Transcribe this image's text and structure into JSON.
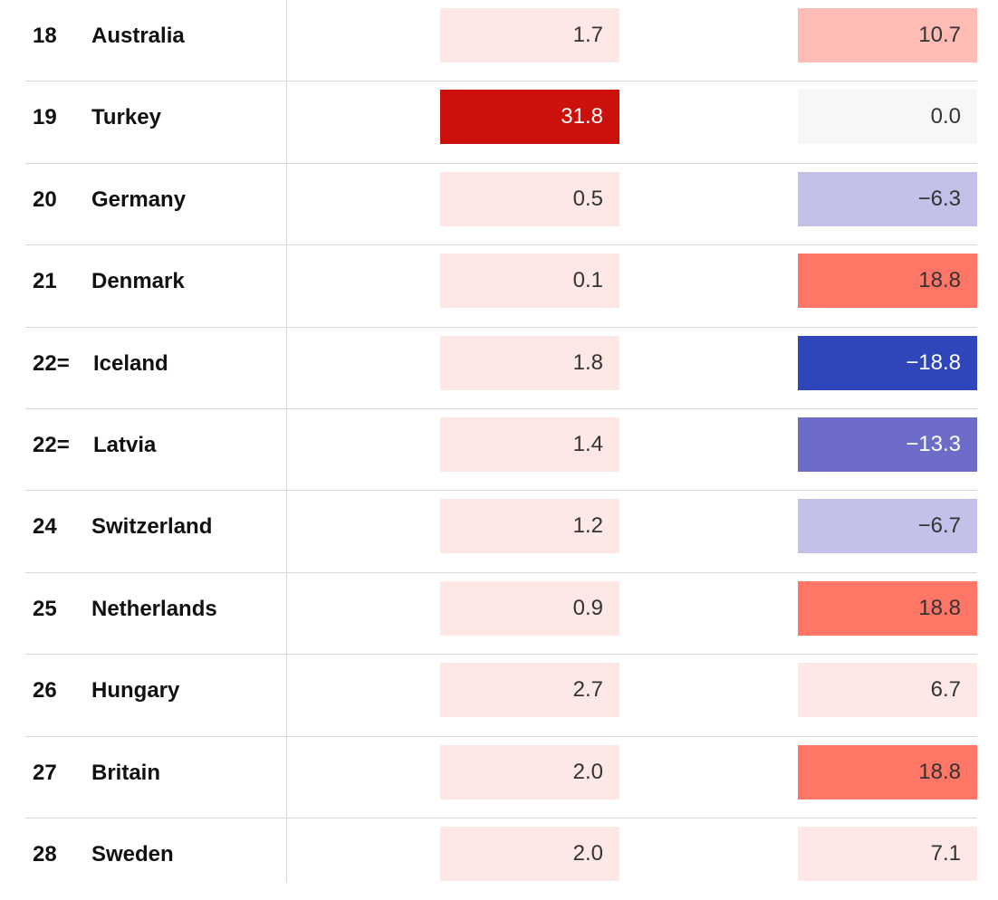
{
  "rows": [
    {
      "rank": "18",
      "country": "Australia",
      "v1": "1.7",
      "v1_bg": "#fde8e6",
      "v1_fg": "#333333",
      "v2": "10.7",
      "v2_bg": "#ffbcb5",
      "v2_fg": "#333333"
    },
    {
      "rank": "19",
      "country": "Turkey",
      "v1": "31.8",
      "v1_bg": "#cc110c",
      "v1_fg": "#ffffff",
      "v2": "0.0",
      "v2_bg": "#f7f7f7",
      "v2_fg": "#333333"
    },
    {
      "rank": "20",
      "country": "Germany",
      "v1": "0.5",
      "v1_bg": "#fde8e6",
      "v1_fg": "#333333",
      "v2": "−6.3",
      "v2_bg": "#c3c1ea",
      "v2_fg": "#333333"
    },
    {
      "rank": "21",
      "country": "Denmark",
      "v1": "0.1",
      "v1_bg": "#fde8e6",
      "v1_fg": "#333333",
      "v2": "18.8",
      "v2_bg": "#ff7566",
      "v2_fg": "#333333"
    },
    {
      "rank": "22=",
      "country": "Iceland",
      "v1": "1.8",
      "v1_bg": "#fde8e6",
      "v1_fg": "#333333",
      "v2": "−18.8",
      "v2_bg": "#2e46b9",
      "v2_fg": "#ffffff"
    },
    {
      "rank": "22=",
      "country": "Latvia",
      "v1": "1.4",
      "v1_bg": "#fde8e6",
      "v1_fg": "#333333",
      "v2": "−13.3",
      "v2_bg": "#6d6dc9",
      "v2_fg": "#ffffff"
    },
    {
      "rank": "24",
      "country": "Switzerland",
      "v1": "1.2",
      "v1_bg": "#fde8e6",
      "v1_fg": "#333333",
      "v2": "−6.7",
      "v2_bg": "#c3c1ea",
      "v2_fg": "#333333"
    },
    {
      "rank": "25",
      "country": "Netherlands",
      "v1": "0.9",
      "v1_bg": "#fde8e6",
      "v1_fg": "#333333",
      "v2": "18.8",
      "v2_bg": "#ff7566",
      "v2_fg": "#333333"
    },
    {
      "rank": "26",
      "country": "Hungary",
      "v1": "2.7",
      "v1_bg": "#fde8e6",
      "v1_fg": "#333333",
      "v2": "6.7",
      "v2_bg": "#fde8e6",
      "v2_fg": "#333333"
    },
    {
      "rank": "27",
      "country": "Britain",
      "v1": "2.0",
      "v1_bg": "#fde8e6",
      "v1_fg": "#333333",
      "v2": "18.8",
      "v2_bg": "#ff7566",
      "v2_fg": "#333333"
    },
    {
      "rank": "28",
      "country": "Sweden",
      "v1": "2.0",
      "v1_bg": "#fde8e6",
      "v1_fg": "#333333",
      "v2": "7.1",
      "v2_bg": "#fde8e6",
      "v2_fg": "#333333"
    }
  ]
}
